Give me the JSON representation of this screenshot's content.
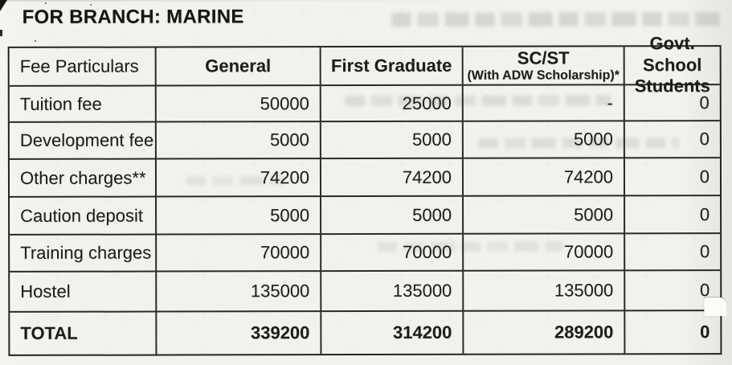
{
  "page": {
    "title": "FOR BRANCH: MARINE"
  },
  "fee_table": {
    "columns": [
      {
        "label": "Fee Particulars",
        "sublabel": ""
      },
      {
        "label": "General",
        "sublabel": ""
      },
      {
        "label": "First Graduate",
        "sublabel": ""
      },
      {
        "label": "SC/ST",
        "sublabel": "(With ADW Scholarship)*"
      },
      {
        "label": "Govt. School Students",
        "sublabel": ""
      }
    ],
    "rows": [
      {
        "label": "Tuition fee",
        "values": [
          "50000",
          "25000",
          "-",
          "0"
        ]
      },
      {
        "label": "Development fee",
        "values": [
          "5000",
          "5000",
          "5000",
          "0"
        ]
      },
      {
        "label": "Other charges**",
        "values": [
          "74200",
          "74200",
          "74200",
          "0"
        ]
      },
      {
        "label": "Caution deposit",
        "values": [
          "5000",
          "5000",
          "5000",
          "0"
        ]
      },
      {
        "label": "Training charges",
        "values": [
          "70000",
          "70000",
          "70000",
          "0"
        ]
      },
      {
        "label": "Hostel",
        "values": [
          "135000",
          "135000",
          "135000",
          "0"
        ]
      },
      {
        "label": "TOTAL",
        "values": [
          "339200",
          "314200",
          "289200",
          "0"
        ]
      }
    ]
  },
  "colors": {
    "paper": "#f2f1ec",
    "ink": "#1d1d1d",
    "table_border": "#2a2a2a",
    "bleed_through": "#7d887e"
  }
}
